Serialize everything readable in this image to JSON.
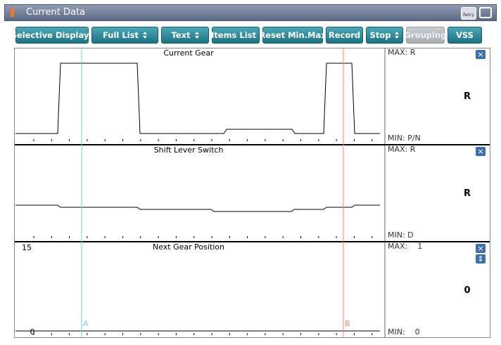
{
  "window": {
    "title": "Current Data",
    "retry": "Retry"
  },
  "toolbar": {
    "buttons": [
      "Selective Display",
      "Full List",
      "Text",
      "Items List",
      "Reset Min.Max",
      "Record",
      "Stop",
      "Grouping",
      "VSS"
    ]
  },
  "panels": [
    {
      "title": "Current Gear",
      "max": "MAX: R",
      "value": "R",
      "min": "MIN: P/N"
    },
    {
      "title": "Shift Lever Switch",
      "max": "MAX: R",
      "value": "R",
      "min": "MIN: D"
    },
    {
      "title": "Next Gear Position",
      "axis_top": "15",
      "axis_bottom": "0",
      "max": "MAX:    1",
      "value": "0",
      "min": "MIN:    0"
    }
  ],
  "cursors": [
    "A",
    "B"
  ]
}
